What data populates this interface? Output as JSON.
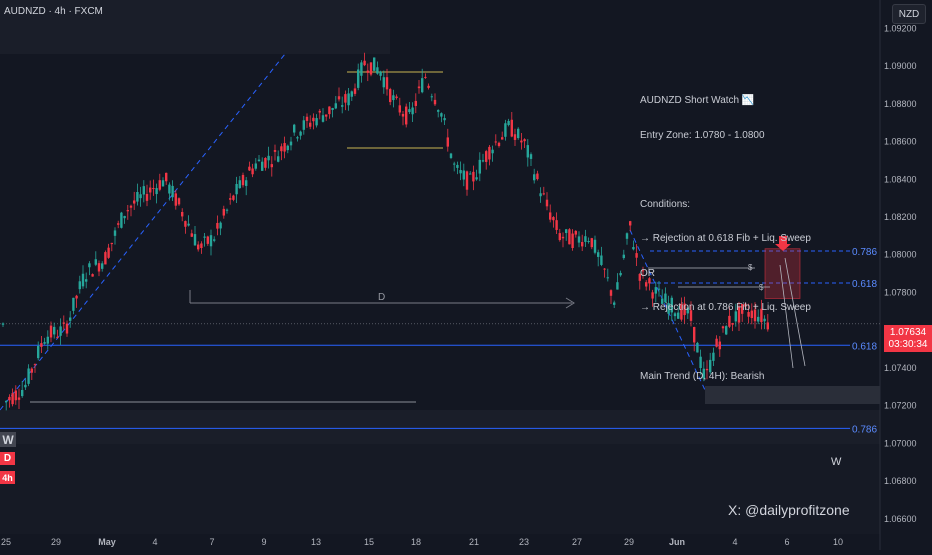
{
  "header": {
    "title": "AUDNZD · 4h · FXCM",
    "currency": "NZD"
  },
  "notes": {
    "lines": [
      "AUDNZD Short Watch 📉",
      "Entry Zone: 1.0780 - 1.0800",
      "",
      "Conditions:",
      "→ Rejection at 0.618 Fib + Liq. Sweep",
      "OR",
      "→ Rejection at 0.786 Fib + Liq. Sweep",
      "",
      "Main Trend (D, 4H): Bearish"
    ]
  },
  "watermark": "X: @dailyprofitzone",
  "timeframes": {
    "weekly": "W",
    "daily": "D",
    "h4": "4h",
    "right_label": "W"
  },
  "current_price": {
    "value": "1.07634",
    "countdown": "03:30:34"
  },
  "colors": {
    "up": "#26a69a",
    "down": "#f23645",
    "fib": "#2962ff",
    "bg": "#131722"
  },
  "chart_data": {
    "type": "candlestick",
    "title": "AUDNZD · 4h · FXCM",
    "x_ticks": [
      "25",
      "29",
      "May",
      "4",
      "7",
      "9",
      "13",
      "15",
      "18",
      "21",
      "23",
      "27",
      "29",
      "Jun",
      "4",
      "6",
      "10"
    ],
    "y_ticks": [
      "1.09200",
      "1.09000",
      "1.08800",
      "1.08600",
      "1.08400",
      "1.08200",
      "1.08000",
      "1.07800",
      "1.07400",
      "1.07200",
      "1.07000",
      "1.06800",
      "1.06600"
    ],
    "ylim": [
      1.0652,
      1.0935
    ],
    "current_price": 1.07634,
    "fib_levels": [
      {
        "label": "0.786",
        "price": 1.0802
      },
      {
        "label": "0.618",
        "price": 1.0785
      },
      {
        "label": "0.618",
        "price": 1.0752
      },
      {
        "label": "0.786",
        "price": 1.0708
      }
    ],
    "entry_zone": [
      1.078,
      1.08
    ],
    "annotations": [
      "D",
      "$",
      "$"
    ]
  }
}
